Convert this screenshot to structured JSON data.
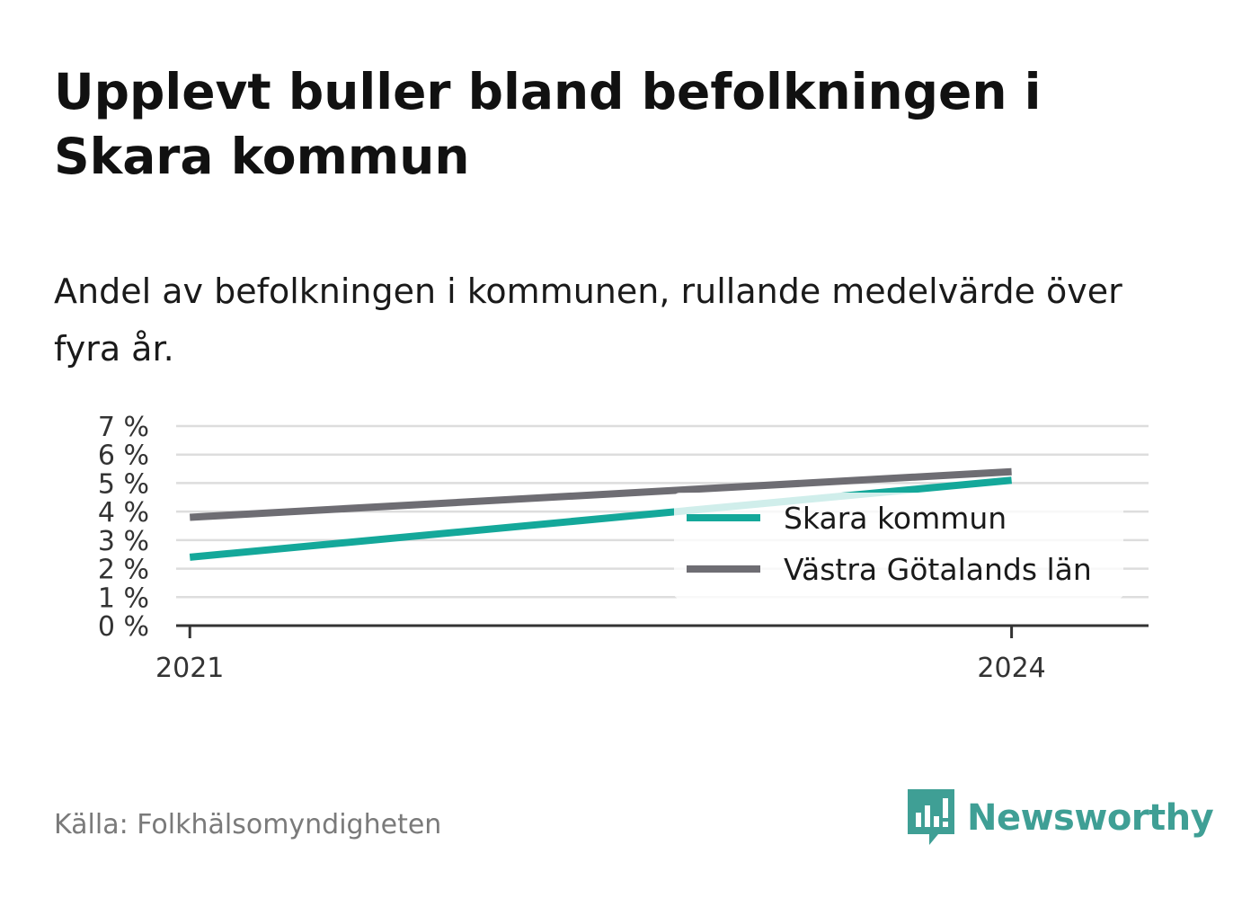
{
  "title": "Upplevt buller bland befolkningen i Skara kommun",
  "subtitle": "Andel av befolkningen i kommunen, rullande medelvärde över fyra år.",
  "source": "Källa: Folkhälsomyndigheten",
  "brand": {
    "name": "Newsworthy",
    "icon": "newsworthy-logo-icon",
    "color": "#3f9f95"
  },
  "colors": {
    "skara": "#14a89a",
    "vastra": "#6e6d73",
    "grid": "#dddddd",
    "axis": "#333333"
  },
  "chart_data": {
    "type": "line",
    "title": "Upplevt buller bland befolkningen i Skara kommun",
    "subtitle": "Andel av befolkningen i kommunen, rullande medelvärde över fyra år.",
    "x": [
      2021,
      2024
    ],
    "x_tick_labels": [
      "2021",
      "2024"
    ],
    "y_ticks": [
      0,
      1,
      2,
      3,
      4,
      5,
      6,
      7
    ],
    "y_tick_labels": [
      "0 %",
      "1 %",
      "2 %",
      "3 %",
      "4 %",
      "5 %",
      "6 %",
      "7 %"
    ],
    "ylim": [
      0,
      7
    ],
    "xlim": [
      2020.95,
      2024.5
    ],
    "grid": true,
    "legend_position": "right",
    "series": [
      {
        "name": "Skara kommun",
        "values": [
          2.4,
          5.1
        ],
        "color": "#14a89a"
      },
      {
        "name": "Västra Götalands län",
        "values": [
          3.8,
          5.4
        ],
        "color": "#6e6d73"
      }
    ]
  }
}
